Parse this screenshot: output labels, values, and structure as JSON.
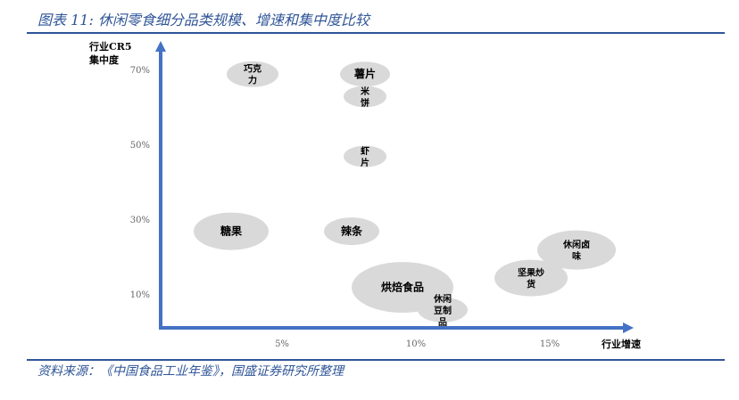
{
  "title": "图表 11: 休闲零食细分品类规模、增速和集中度比较",
  "source": "资料来源：《中国食品工业年鉴》，国盛证券研究所整理",
  "chart_data": {
    "type": "scatter",
    "bubble": true,
    "xlabel": "行业增速",
    "ylabel": [
      "行业CR5",
      "集中度"
    ],
    "x_ticks": [
      "5%",
      "10%",
      "15%"
    ],
    "x_tick_values": [
      5,
      10,
      15
    ],
    "y_ticks": [
      "10%",
      "30%",
      "50%",
      "70%"
    ],
    "y_tick_values": [
      10,
      30,
      50,
      70
    ],
    "xlim": [
      0.5,
      18
    ],
    "ylim": [
      1,
      78
    ],
    "grid": false,
    "bubble_color": "#d9d9d9",
    "axis_color": "#4472c4",
    "points": [
      {
        "label": [
          "巧克",
          "力"
        ],
        "x": 3.9,
        "y": 69,
        "size": 29
      },
      {
        "label": [
          "薯片"
        ],
        "x": 8.1,
        "y": 69,
        "size": 28
      },
      {
        "label": [
          "米",
          "饼"
        ],
        "x": 8.1,
        "y": 63,
        "size": 24
      },
      {
        "label": [
          "虾",
          "片"
        ],
        "x": 8.1,
        "y": 47,
        "size": 24
      },
      {
        "label": [
          "糖果"
        ],
        "x": 3.1,
        "y": 27,
        "size": 42
      },
      {
        "label": [
          "辣条"
        ],
        "x": 7.6,
        "y": 27,
        "size": 31
      },
      {
        "label": [
          "烘焙食品"
        ],
        "x": 9.5,
        "y": 12,
        "size": 57
      },
      {
        "label": [
          "休闲",
          "豆制",
          "品"
        ],
        "x": 11,
        "y": 6,
        "size": 28
      },
      {
        "label": [
          "坚果炒",
          "货"
        ],
        "x": 14.3,
        "y": 14.5,
        "size": 41
      },
      {
        "label": [
          "休闲卤",
          "味"
        ],
        "x": 16,
        "y": 22,
        "size": 44
      }
    ]
  }
}
